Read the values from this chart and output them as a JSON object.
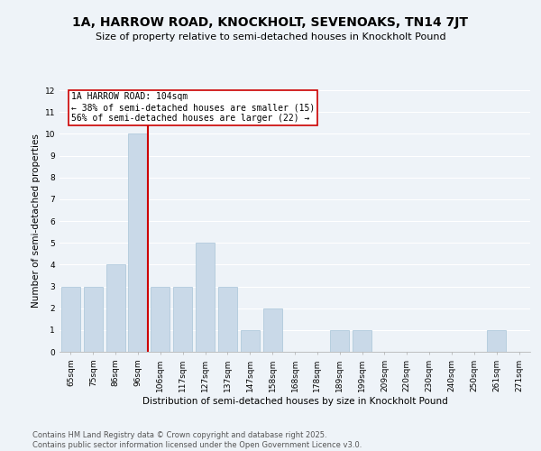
{
  "title": "1A, HARROW ROAD, KNOCKHOLT, SEVENOAKS, TN14 7JT",
  "subtitle": "Size of property relative to semi-detached houses in Knockholt Pound",
  "xlabel": "Distribution of semi-detached houses by size in Knockholt Pound",
  "ylabel": "Number of semi-detached properties",
  "categories": [
    "65sqm",
    "75sqm",
    "86sqm",
    "96sqm",
    "106sqm",
    "117sqm",
    "127sqm",
    "137sqm",
    "147sqm",
    "158sqm",
    "168sqm",
    "178sqm",
    "189sqm",
    "199sqm",
    "209sqm",
    "220sqm",
    "230sqm",
    "240sqm",
    "250sqm",
    "261sqm",
    "271sqm"
  ],
  "values": [
    3,
    3,
    4,
    10,
    3,
    3,
    5,
    3,
    1,
    2,
    0,
    0,
    1,
    1,
    0,
    0,
    0,
    0,
    0,
    1,
    0
  ],
  "bar_color": "#c9d9e8",
  "bar_edgecolor": "#a8c4d8",
  "highlight_bar_index": 3,
  "highlight_color": "#cc0000",
  "annotation_title": "1A HARROW ROAD: 104sqm",
  "annotation_line1": "← 38% of semi-detached houses are smaller (15)",
  "annotation_line2": "56% of semi-detached houses are larger (22) →",
  "annotation_box_color": "#cc0000",
  "ylim": [
    0,
    12
  ],
  "yticks": [
    0,
    1,
    2,
    3,
    4,
    5,
    6,
    7,
    8,
    9,
    10,
    11,
    12
  ],
  "background_color": "#eef3f8",
  "grid_color": "#ffffff",
  "footer_line1": "Contains HM Land Registry data © Crown copyright and database right 2025.",
  "footer_line2": "Contains public sector information licensed under the Open Government Licence v3.0.",
  "title_fontsize": 10,
  "subtitle_fontsize": 8,
  "axis_label_fontsize": 7.5,
  "tick_fontsize": 6.5,
  "annotation_fontsize": 7,
  "footer_fontsize": 6
}
